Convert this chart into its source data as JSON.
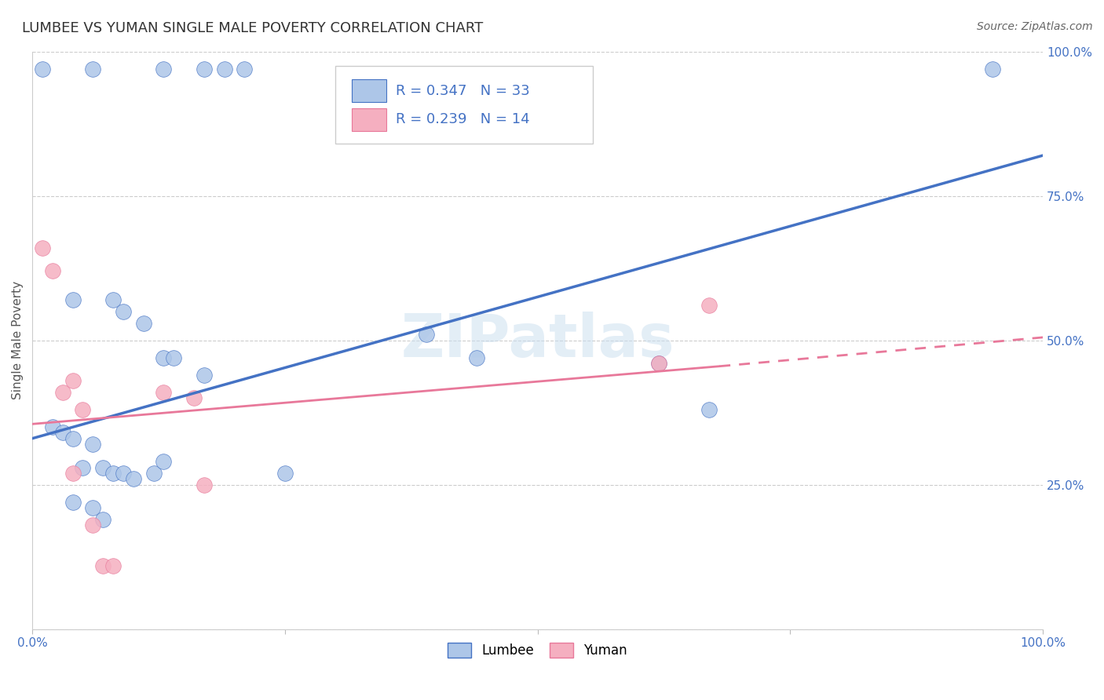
{
  "title": "LUMBEE VS YUMAN SINGLE MALE POVERTY CORRELATION CHART",
  "source_text": "Source: ZipAtlas.com",
  "ylabel": "Single Male Poverty",
  "xlim": [
    0,
    1
  ],
  "ylim": [
    0,
    1
  ],
  "xticks": [
    0,
    0.25,
    0.5,
    0.75,
    1.0
  ],
  "yticks": [
    0,
    0.25,
    0.5,
    0.75,
    1.0
  ],
  "lumbee_color": "#adc6e8",
  "yuman_color": "#f5afc0",
  "lumbee_line_color": "#4472c4",
  "yuman_line_color": "#e8789a",
  "lumbee_R": 0.347,
  "lumbee_N": 33,
  "yuman_R": 0.239,
  "yuman_N": 14,
  "legend_label_lumbee": "Lumbee",
  "legend_label_yuman": "Yuman",
  "watermark": "ZIPatlas",
  "title_color": "#333333",
  "axis_label_color": "#555555",
  "tick_color": "#4472c4",
  "lumbee_x": [
    0.01,
    0.06,
    0.13,
    0.17,
    0.19,
    0.21,
    0.04,
    0.08,
    0.09,
    0.11,
    0.13,
    0.14,
    0.17,
    0.02,
    0.03,
    0.04,
    0.05,
    0.06,
    0.07,
    0.08,
    0.09,
    0.1,
    0.12,
    0.04,
    0.06,
    0.07,
    0.39,
    0.44,
    0.62,
    0.67,
    0.95,
    0.25,
    0.13
  ],
  "lumbee_y": [
    0.97,
    0.97,
    0.97,
    0.97,
    0.97,
    0.97,
    0.57,
    0.57,
    0.55,
    0.53,
    0.47,
    0.47,
    0.44,
    0.35,
    0.34,
    0.33,
    0.28,
    0.32,
    0.28,
    0.27,
    0.27,
    0.26,
    0.27,
    0.22,
    0.21,
    0.19,
    0.51,
    0.47,
    0.46,
    0.38,
    0.97,
    0.27,
    0.29
  ],
  "yuman_x": [
    0.01,
    0.02,
    0.03,
    0.04,
    0.05,
    0.13,
    0.16,
    0.17,
    0.62,
    0.67,
    0.04,
    0.06,
    0.07,
    0.08
  ],
  "yuman_y": [
    0.66,
    0.62,
    0.41,
    0.43,
    0.38,
    0.41,
    0.4,
    0.25,
    0.46,
    0.56,
    0.27,
    0.18,
    0.11,
    0.11
  ],
  "blue_line_x0": 0.0,
  "blue_line_y0": 0.33,
  "blue_line_x1": 1.0,
  "blue_line_y1": 0.82,
  "pink_line_x0": 0.0,
  "pink_line_y0": 0.355,
  "pink_line_x1_solid": 0.68,
  "pink_line_y1_solid": 0.455,
  "pink_line_x1_dash": 1.0,
  "pink_line_y1_dash": 0.505
}
